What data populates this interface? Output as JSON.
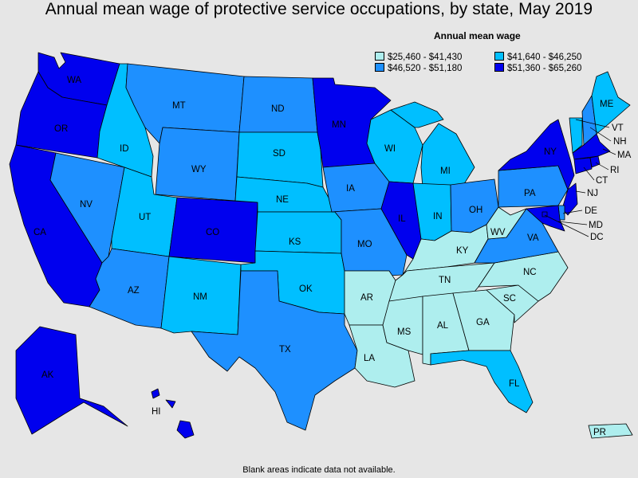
{
  "title": "Annual mean wage of protective service occupations, by state, May 2019",
  "legend": {
    "title": "Annual mean wage",
    "items": [
      {
        "label": "$25,460 - $41,430",
        "color": "#aeeeee"
      },
      {
        "label": "$41,640 - $46,250",
        "color": "#00bfff"
      },
      {
        "label": "$46,520 - $51,180",
        "color": "#1e90ff"
      },
      {
        "label": "$51,360 - $65,260",
        "color": "#0000ee"
      }
    ]
  },
  "footnote": "Blank areas indicate data not available.",
  "states": {
    "WA": "WA",
    "OR": "OR",
    "CA": "CA",
    "NV": "NV",
    "ID": "ID",
    "MT": "MT",
    "WY": "WY",
    "UT": "UT",
    "AZ": "AZ",
    "NM": "NM",
    "CO": "CO",
    "ND": "ND",
    "SD": "SD",
    "NE": "NE",
    "KS": "KS",
    "OK": "OK",
    "TX": "TX",
    "MN": "MN",
    "IA": "IA",
    "MO": "MO",
    "AR": "AR",
    "LA": "LA",
    "WI": "WI",
    "IL": "IL",
    "MI": "MI",
    "IN": "IN",
    "OH": "OH",
    "KY": "KY",
    "TN": "TN",
    "MS": "MS",
    "AL": "AL",
    "GA": "GA",
    "FL": "FL",
    "SC": "SC",
    "NC": "NC",
    "VA": "VA",
    "WV": "WV",
    "PA": "PA",
    "NY": "NY",
    "ME": "ME",
    "VT": "VT",
    "NH": "NH",
    "MA": "MA",
    "RI": "RI",
    "CT": "CT",
    "NJ": "NJ",
    "DE": "DE",
    "MD": "MD",
    "DC": "DC",
    "AK": "AK",
    "HI": "HI",
    "PR": "PR"
  }
}
